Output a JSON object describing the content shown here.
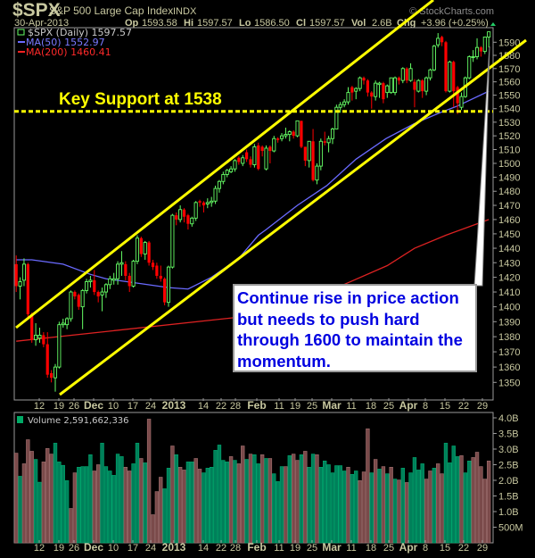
{
  "header": {
    "symbol": "$SPX",
    "name": "S&P 500 Large Cap Index",
    "exchange": "INDX",
    "watermark": "© StockCharts.com",
    "date": "30-Apr-2013",
    "op_label": "Op",
    "op": "1593.58",
    "hi_label": "Hi",
    "hi": "1597.57",
    "lo_label": "Lo",
    "lo": "1586.50",
    "cl_label": "Cl",
    "cl": "1597.57",
    "vol_label": "Vol",
    "vol": "2.6B",
    "chg_label": "Chg",
    "chg": "+3.96 (+0.25%)"
  },
  "legend": {
    "price": "$SPX (Daily) 1597.57",
    "ma50": "MA(50) 1552.97",
    "ma200": "MA(200) 1460.41",
    "volume": "Volume 2,591,662,336"
  },
  "annotations": {
    "support_label": "Key Support at 1538",
    "support_level": 1538,
    "note": "Continue rise in price action but needs to push hard through 1600 to maintain the momentum."
  },
  "colors": {
    "up": "#66ff66",
    "down": "#ff0000",
    "ma50": "#6a6aff",
    "ma200": "#dd2222",
    "vol_up": "#00805a",
    "vol_down": "#7a4a4a",
    "trendline": "#ffff00"
  },
  "chart_data": [
    {
      "type": "candlestick",
      "title": "$SPX (Daily)",
      "y_scale": "log",
      "ylim": [
        1340,
        1600
      ],
      "y_ticks": [
        1350,
        1360,
        1370,
        1380,
        1390,
        1400,
        1410,
        1420,
        1430,
        1440,
        1450,
        1460,
        1470,
        1480,
        1490,
        1500,
        1510,
        1520,
        1530,
        1540,
        1550,
        1560,
        1570,
        1580,
        1590
      ],
      "x_tick_labels": [
        "12",
        "19",
        "26",
        "Dec",
        "10",
        "17",
        "24",
        "2013",
        "14",
        "22",
        "28",
        "Feb",
        "11",
        "19",
        "25",
        "Mar",
        "11",
        "18",
        "25",
        "Apr",
        "8",
        "15",
        "22",
        "29"
      ],
      "ohlc": [
        [
          1429,
          1435,
          1410,
          1414
        ],
        [
          1414,
          1420,
          1405,
          1417
        ],
        [
          1418,
          1433,
          1414,
          1429
        ],
        [
          1429,
          1430,
          1393,
          1395
        ],
        [
          1395,
          1396,
          1376,
          1378
        ],
        [
          1378,
          1389,
          1374,
          1381
        ],
        [
          1379,
          1386,
          1376,
          1381
        ],
        [
          1381,
          1383,
          1373,
          1375
        ],
        [
          1375,
          1383,
          1353,
          1355
        ],
        [
          1356,
          1358,
          1350,
          1353
        ],
        [
          1353,
          1362,
          1344,
          1360
        ],
        [
          1360,
          1390,
          1359,
          1388
        ],
        [
          1388,
          1392,
          1386,
          1389
        ],
        [
          1388,
          1393,
          1385,
          1392
        ],
        [
          1392,
          1411,
          1390,
          1410
        ],
        [
          1410,
          1411,
          1405,
          1407
        ],
        [
          1408,
          1409,
          1398,
          1400
        ],
        [
          1400,
          1412,
          1385,
          1411
        ],
        [
          1411,
          1419,
          1409,
          1417
        ],
        [
          1417,
          1421,
          1413,
          1418
        ],
        [
          1418,
          1425,
          1408,
          1410
        ],
        [
          1410,
          1411,
          1403,
          1407
        ],
        [
          1408,
          1413,
          1397,
          1410
        ],
        [
          1410,
          1416,
          1406,
          1415
        ],
        [
          1415,
          1421,
          1412,
          1419
        ],
        [
          1418,
          1423,
          1415,
          1419
        ],
        [
          1419,
          1431,
          1415,
          1429
        ],
        [
          1429,
          1438,
          1421,
          1430
        ],
        [
          1429,
          1431,
          1418,
          1421
        ],
        [
          1421,
          1423,
          1410,
          1414
        ],
        [
          1414,
          1432,
          1413,
          1431
        ],
        [
          1431,
          1449,
          1429,
          1447
        ],
        [
          1447,
          1448,
          1434,
          1436
        ],
        [
          1436,
          1445,
          1432,
          1444
        ],
        [
          1444,
          1445,
          1428,
          1430
        ],
        [
          1430,
          1432,
          1425,
          1427
        ],
        [
          1428,
          1430,
          1419,
          1421
        ],
        [
          1421,
          1428,
          1417,
          1419
        ],
        [
          1419,
          1420,
          1401,
          1403
        ],
        [
          1403,
          1428,
          1400,
          1427
        ],
        [
          1427,
          1464,
          1426,
          1463
        ],
        [
          1463,
          1465,
          1456,
          1460
        ],
        [
          1460,
          1470,
          1458,
          1467
        ],
        [
          1467,
          1468,
          1458,
          1462
        ],
        [
          1463,
          1464,
          1453,
          1457
        ],
        [
          1457,
          1462,
          1455,
          1461
        ],
        [
          1461,
          1473,
          1459,
          1472
        ],
        [
          1473,
          1474,
          1469,
          1472
        ],
        [
          1472,
          1473,
          1465,
          1470
        ],
        [
          1471,
          1475,
          1468,
          1472
        ],
        [
          1472,
          1476,
          1469,
          1473
        ],
        [
          1473,
          1484,
          1471,
          1482
        ],
        [
          1482,
          1488,
          1479,
          1487
        ],
        [
          1487,
          1494,
          1485,
          1492
        ],
        [
          1492,
          1496,
          1490,
          1495
        ],
        [
          1494,
          1498,
          1493,
          1496
        ],
        [
          1496,
          1503,
          1494,
          1502
        ],
        [
          1504,
          1505,
          1499,
          1501
        ],
        [
          1500,
          1506,
          1498,
          1504
        ],
        [
          1508,
          1510,
          1501,
          1503
        ],
        [
          1503,
          1505,
          1497,
          1499
        ],
        [
          1499,
          1514,
          1497,
          1512
        ],
        [
          1513,
          1515,
          1495,
          1496
        ],
        [
          1512,
          1513,
          1505,
          1509
        ],
        [
          1496,
          1513,
          1495,
          1511
        ],
        [
          1512,
          1513,
          1500,
          1509
        ],
        [
          1509,
          1520,
          1508,
          1518
        ],
        [
          1518,
          1519,
          1515,
          1517
        ],
        [
          1518,
          1522,
          1516,
          1520
        ],
        [
          1520,
          1526,
          1518,
          1521
        ],
        [
          1521,
          1524,
          1516,
          1523
        ],
        [
          1523,
          1524,
          1518,
          1520
        ],
        [
          1520,
          1531,
          1519,
          1531
        ],
        [
          1531,
          1531,
          1511,
          1512
        ],
        [
          1512,
          1512,
          1498,
          1502
        ],
        [
          1502,
          1516,
          1497,
          1516
        ],
        [
          1516,
          1525,
          1487,
          1488
        ],
        [
          1488,
          1500,
          1485,
          1498
        ],
        [
          1498,
          1518,
          1495,
          1516
        ],
        [
          1516,
          1523,
          1513,
          1515
        ],
        [
          1515,
          1520,
          1508,
          1518
        ],
        [
          1518,
          1526,
          1514,
          1525
        ],
        [
          1525,
          1543,
          1525,
          1541
        ],
        [
          1541,
          1545,
          1537,
          1543
        ],
        [
          1543,
          1547,
          1541,
          1545
        ],
        [
          1545,
          1556,
          1543,
          1552
        ],
        [
          1556,
          1557,
          1546,
          1552
        ],
        [
          1553,
          1556,
          1547,
          1555
        ],
        [
          1555,
          1564,
          1553,
          1563
        ],
        [
          1563,
          1564,
          1558,
          1561
        ],
        [
          1561,
          1562,
          1549,
          1552
        ],
        [
          1552,
          1553,
          1540,
          1549
        ],
        [
          1549,
          1561,
          1546,
          1559
        ],
        [
          1558,
          1560,
          1548,
          1559
        ],
        [
          1559,
          1560,
          1544,
          1547
        ],
        [
          1552,
          1558,
          1548,
          1557
        ],
        [
          1552,
          1563,
          1551,
          1563
        ],
        [
          1552,
          1564,
          1550,
          1563
        ],
        [
          1563,
          1564,
          1558,
          1561
        ],
        [
          1561,
          1571,
          1559,
          1570
        ],
        [
          1570,
          1571,
          1559,
          1561
        ],
        [
          1561,
          1574,
          1560,
          1570
        ],
        [
          1560,
          1562,
          1541,
          1554
        ],
        [
          1553,
          1562,
          1552,
          1561
        ],
        [
          1561,
          1562,
          1548,
          1553
        ],
        [
          1553,
          1564,
          1550,
          1563
        ],
        [
          1563,
          1570,
          1561,
          1569
        ],
        [
          1569,
          1588,
          1568,
          1587
        ],
        [
          1588,
          1597,
          1586,
          1593
        ],
        [
          1594,
          1595,
          1587,
          1590
        ],
        [
          1590,
          1591,
          1552,
          1553
        ],
        [
          1553,
          1576,
          1552,
          1575
        ],
        [
          1575,
          1576,
          1541,
          1553
        ],
        [
          1556,
          1557,
          1536,
          1544
        ],
        [
          1541,
          1552,
          1539,
          1549
        ],
        [
          1549,
          1564,
          1548,
          1563
        ],
        [
          1563,
          1580,
          1562,
          1579
        ],
        [
          1579,
          1584,
          1575,
          1579
        ],
        [
          1579,
          1593,
          1577,
          1586
        ],
        [
          1586,
          1587,
          1579,
          1583
        ],
        [
          1583,
          1594,
          1581,
          1594
        ],
        [
          1594,
          1598,
          1586,
          1598
        ]
      ],
      "ma50_points": [
        [
          0,
          1432
        ],
        [
          4,
          1432
        ],
        [
          12,
          1429
        ],
        [
          19,
          1422
        ],
        [
          23,
          1419
        ],
        [
          31,
          1416
        ],
        [
          39,
          1413
        ],
        [
          44,
          1412
        ],
        [
          50,
          1420
        ],
        [
          57,
          1433
        ],
        [
          62,
          1449
        ],
        [
          64,
          1453
        ],
        [
          72,
          1470
        ],
        [
          79.5,
          1484
        ],
        [
          87,
          1503
        ],
        [
          94.7,
          1518
        ],
        [
          102,
          1529
        ],
        [
          108.5,
          1537
        ],
        [
          113,
          1542
        ],
        [
          121,
          1553
        ]
      ],
      "ma200_points": [
        [
          0,
          1377
        ],
        [
          64,
          1395
        ],
        [
          83,
          1414
        ],
        [
          95,
          1428
        ],
        [
          102,
          1440
        ],
        [
          110,
          1449
        ],
        [
          121,
          1460
        ]
      ]
    },
    {
      "type": "bar",
      "title": "Volume",
      "ylim": [
        0,
        4.0
      ],
      "unit": "B",
      "y_tick_labels": [
        "500M",
        "1.0B",
        "1.5B",
        "2.0B",
        "2.5B",
        "3.0B",
        "3.5B",
        "4.0B"
      ],
      "values": [
        2.87,
        2.13,
        2.53,
        3.3,
        2.93,
        2.67,
        1.94,
        2.59,
        3.02,
        2.84,
        3.19,
        2.59,
        2.48,
        1.99,
        1.1,
        2.24,
        2.42,
        2.44,
        2.44,
        2.82,
        2.3,
        2.5,
        3.19,
        2.44,
        2.3,
        2.16,
        2.84,
        2.76,
        2.42,
        2.3,
        2.53,
        3.19,
        2.7,
        2.56,
        3.96,
        0.9,
        1.64,
        2.1,
        1.73,
        2.39,
        3.1,
        2.82,
        2.42,
        2.33,
        2.59,
        2.59,
        2.7,
        2.36,
        2.24,
        2.39,
        2.42,
        2.96,
        3.13,
        2.64,
        2.59,
        2.76,
        2.64,
        2.53,
        3.1,
        2.67,
        2.84,
        2.82,
        2.53,
        2.82,
        2.7,
        2.7,
        2.21,
        1.96,
        2.44,
        2.44,
        2.79,
        2.84,
        2.64,
        2.82,
        2.93,
        2.42,
        2.84,
        2.82,
        2.42,
        2.62,
        2.5,
        2.24,
        2.47,
        2.47,
        2.3,
        2.42,
        2.19,
        2.3,
        1.99,
        2.27,
        3.65,
        2.24,
        2.67,
        2.36,
        2.44,
        2.21,
        2.42,
        2.04,
        2.01,
        2.39,
        1.93,
        2.24,
        2.73,
        2.33,
        2.53,
        2.04,
        2.3,
        2.39,
        2.53,
        2.21,
        3.19,
        2.56,
        3.1,
        2.76,
        2.79,
        2.24,
        2.62,
        2.73,
        2.9,
        2.44,
        2.04,
        2.62
      ],
      "direction": "rgrrrggrrrggggrrggggrrggggggrrggrgrrrrggrgrrggrrgggggggrgrrgrggrgrgggrgrrgrggrgggggggrggrrrgrgrgrgrgrggggrrgrrggggrgg"
    }
  ]
}
